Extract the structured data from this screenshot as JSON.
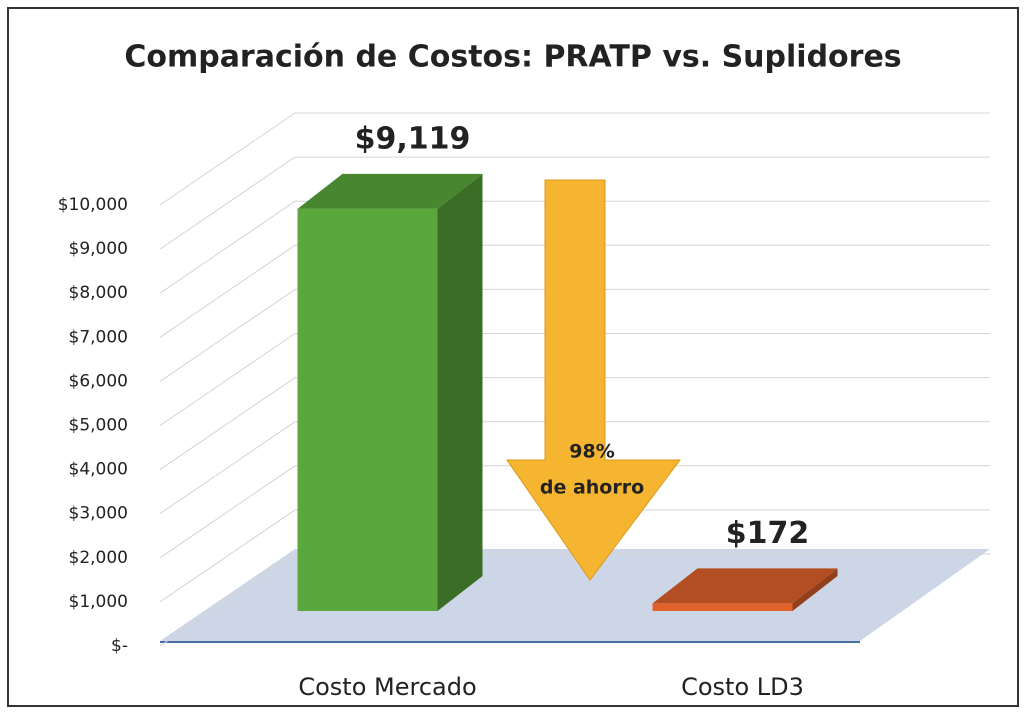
{
  "chart_data": {
    "type": "bar3d",
    "title": "Comparación de Costos: PRATP vs. Suplidores",
    "categories": [
      "Costo Mercado",
      "Costo LD3"
    ],
    "values": [
      9119,
      172
    ],
    "value_labels": [
      "$9,119",
      "$172"
    ],
    "colors": [
      "#5aa83c",
      "#e0622a"
    ],
    "annotation": [
      "98%",
      "de ahorro"
    ],
    "ylim": [
      0,
      10000
    ],
    "yticks": [
      {
        "value": 0,
        "label": "$-"
      },
      {
        "value": 1000,
        "label": "$1,000"
      },
      {
        "value": 2000,
        "label": "$2,000"
      },
      {
        "value": 3000,
        "label": "$3,000"
      },
      {
        "value": 4000,
        "label": "$4,000"
      },
      {
        "value": 5000,
        "label": "$5,000"
      },
      {
        "value": 6000,
        "label": "$6,000"
      },
      {
        "value": 7000,
        "label": "$7,000"
      },
      {
        "value": 8000,
        "label": "$8,000"
      },
      {
        "value": 9000,
        "label": "$9,000"
      },
      {
        "value": 10000,
        "label": "$10,000"
      }
    ],
    "grid": true
  }
}
